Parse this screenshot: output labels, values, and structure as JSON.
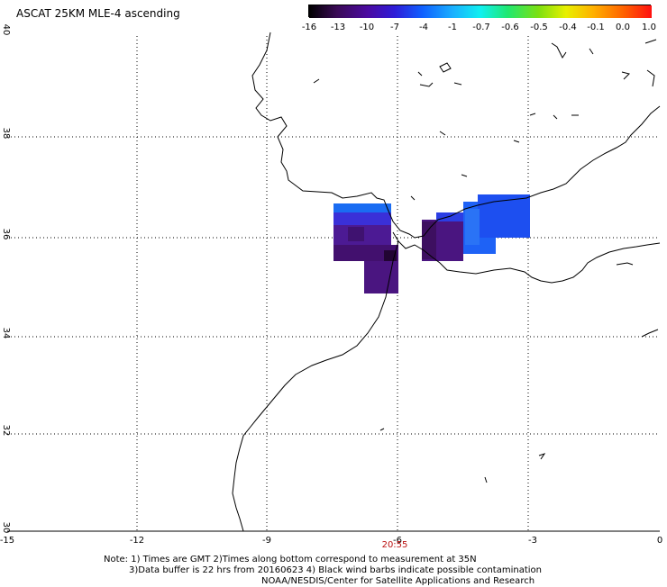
{
  "title": "ASCAT 25KM MLE-4 ascending",
  "colorbar": {
    "labels": [
      "-16",
      "-13",
      "-10",
      "-7",
      "-4",
      "-1",
      "-0.7",
      "-0.6",
      "-0.5",
      "-0.4",
      "-0.1",
      "0.0",
      "1.0"
    ],
    "colors": [
      "#000000",
      "#3a0a55",
      "#4b0aa0",
      "#2e1cd8",
      "#1060ff",
      "#1ab0ff",
      "#10f0f0",
      "#20e870",
      "#7de010",
      "#e8f000",
      "#ffb000",
      "#ff6000",
      "#ff1010"
    ]
  },
  "axes": {
    "x_ticks": [
      "-15",
      "-12",
      "-9",
      "-6",
      "-3",
      "0"
    ],
    "y_ticks": [
      "40",
      "38",
      "36",
      "34",
      "32",
      "30"
    ]
  },
  "time_label": "20:55",
  "notes": [
    "Note: 1) Times are GMT 2)Times along bottom correspond to measurement at 35N",
    "3)Data buffer is 22 hrs from 20160623 4) Black wind barbs indicate possible contamination",
    "NOAA/NESDIS/Center for Satellite Applications and Research"
  ],
  "colors": {
    "dark_purple": "#3d1060",
    "purple": "#4a1390",
    "violet_blue": "#3a2be0",
    "blue": "#1f5ef7",
    "light_blue": "#1d7cf6",
    "time_red": "#b11111"
  }
}
